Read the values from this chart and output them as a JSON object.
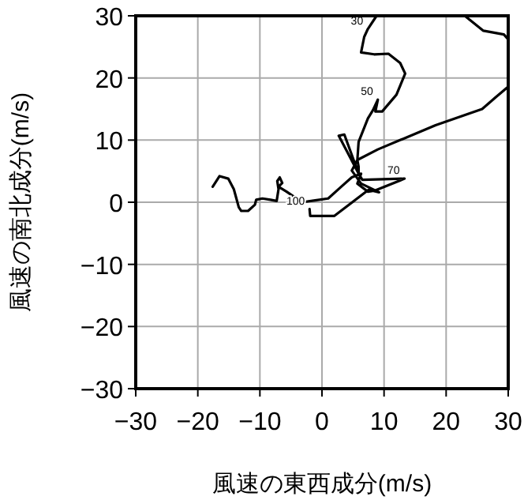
{
  "chart_data": {
    "type": "line",
    "xlabel": "風速の東西成分(m/s)",
    "ylabel": "風速の南北成分(m/s)",
    "xlim": [
      -30,
      30
    ],
    "ylim": [
      -30,
      30
    ],
    "xticks": [
      -30,
      -20,
      -10,
      0,
      10,
      20,
      30
    ],
    "yticks": [
      -30,
      -20,
      -10,
      0,
      10,
      20,
      30
    ],
    "grid": true,
    "marker": "none",
    "line_style": "solid",
    "series": [
      {
        "color": "#000000",
        "x": [
          -17.6,
          -16.5,
          -15.1,
          -14.2,
          -13.4,
          -13,
          -11.9,
          -10.8,
          -10.6,
          -9.6,
          -8.3,
          -7.3,
          -7.0,
          -7.2,
          -6.8,
          -6.4,
          -7.0,
          -5.7,
          -3.2,
          -1.1,
          1.0,
          3.1,
          4.8,
          6.3,
          5.7,
          7.4,
          8.6,
          13.3,
          6.5,
          5.9,
          2.7,
          3.6,
          5.9,
          5.9,
          5.7,
          5.9,
          7.4,
          8.2,
          9.0,
          8.6,
          9.7,
          12.0,
          13.4,
          12.6,
          10.7,
          8.4,
          6.3,
          6.8,
          7.4,
          8.8,
          null,
          23,
          26,
          29.3,
          30,
          null,
          30,
          28,
          25.8,
          18.3,
          9.0,
          5.7,
          4.8,
          6.3,
          9.2,
          7.5,
          2.0,
          -1.9,
          -2.0
        ],
        "values": [
          2.5,
          4.2,
          3.8,
          2.1,
          -0.8,
          -1.4,
          -1.4,
          -0.4,
          0.4,
          0.6,
          0.4,
          0.2,
          2.1,
          3.4,
          4.0,
          3.1,
          2.5,
          1.7,
          0,
          0.3,
          0.6,
          2.5,
          4.0,
          4.6,
          3.0,
          1.7,
          1.9,
          3.8,
          3.6,
          4.6,
          10.7,
          10.9,
          4.6,
          5.7,
          6.8,
          9.7,
          13.5,
          14.8,
          16.5,
          14.6,
          14.6,
          17.3,
          20.7,
          22.4,
          23.9,
          23.8,
          24.1,
          26.6,
          27.9,
          30,
          null,
          30,
          27.6,
          27,
          26.2,
          null,
          18.6,
          16.9,
          15,
          12.4,
          8.5,
          6.8,
          5.1,
          3.0,
          1.6,
          2.0,
          -2.2,
          -2.2,
          -1.1
        ]
      }
    ],
    "annotations": [
      {
        "text": "30",
        "x": 7.4,
        "y": 27.9
      },
      {
        "text": "50",
        "x": 9.0,
        "y": 16.5
      },
      {
        "text": "70",
        "x": 13.3,
        "y": 3.8
      },
      {
        "text": "100",
        "x": -2.0,
        "y": -1.1
      }
    ]
  }
}
